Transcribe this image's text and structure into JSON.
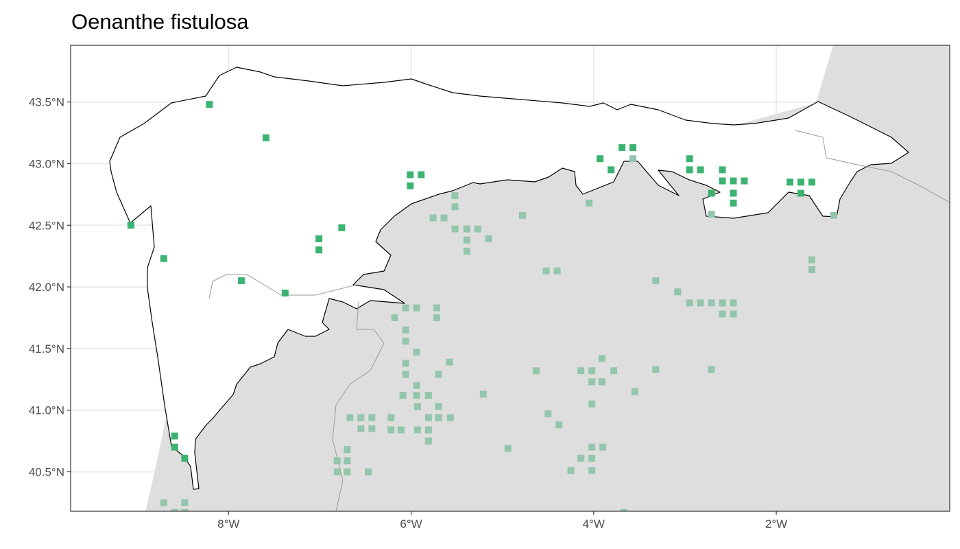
{
  "title": "Oenanthe fistulosa",
  "colors": {
    "present_in_region": "#3cb371",
    "present_outside_region": "#93c6aa",
    "other_land": "#dedede",
    "region_fill": "#ffffff",
    "grid": "#ebebeb"
  },
  "chart_data": {
    "type": "map-scatter",
    "title": "Oenanthe fistulosa",
    "xlim": [
      -9.73,
      -0.1
    ],
    "ylim": [
      40.18,
      43.96
    ],
    "grid": true,
    "x_ticks": [
      {
        "value": -8,
        "label": "8°W"
      },
      {
        "value": -6,
        "label": "6°W"
      },
      {
        "value": -4,
        "label": "4°W"
      },
      {
        "value": -2,
        "label": "2°W"
      }
    ],
    "y_ticks": [
      {
        "value": 43.5,
        "label": "43.5°N"
      },
      {
        "value": 43.0,
        "label": "43.0°N"
      },
      {
        "value": 42.5,
        "label": "42.5°N"
      },
      {
        "value": 42.0,
        "label": "42.0°N"
      },
      {
        "value": 41.5,
        "label": "41.5°N"
      },
      {
        "value": 41.0,
        "label": "41.0°N"
      },
      {
        "value": 40.5,
        "label": "40.5°N"
      }
    ],
    "series": [
      {
        "style": "in-region",
        "points": [
          [
            -8.21,
            43.48
          ],
          [
            -7.59,
            43.21
          ],
          [
            -9.07,
            42.5
          ],
          [
            -8.71,
            42.23
          ],
          [
            -7.01,
            42.39
          ],
          [
            -7.01,
            42.3
          ],
          [
            -6.76,
            42.48
          ],
          [
            -7.86,
            42.05
          ],
          [
            -7.38,
            41.95
          ],
          [
            -6.01,
            42.91
          ],
          [
            -5.89,
            42.91
          ],
          [
            -6.01,
            42.82
          ],
          [
            -3.93,
            43.04
          ],
          [
            -3.69,
            43.13
          ],
          [
            -3.57,
            43.13
          ],
          [
            -3.81,
            42.95
          ],
          [
            -2.95,
            43.04
          ],
          [
            -2.95,
            42.95
          ],
          [
            -2.83,
            42.95
          ],
          [
            -2.59,
            42.95
          ],
          [
            -2.71,
            42.76
          ],
          [
            -2.59,
            42.86
          ],
          [
            -2.47,
            42.86
          ],
          [
            -2.35,
            42.86
          ],
          [
            -2.47,
            42.76
          ],
          [
            -2.47,
            42.68
          ],
          [
            -1.85,
            42.85
          ],
          [
            -1.73,
            42.85
          ],
          [
            -1.61,
            42.85
          ],
          [
            -1.73,
            42.76
          ],
          [
            -8.59,
            40.79
          ],
          [
            -8.59,
            40.7
          ],
          [
            -8.48,
            40.61
          ]
        ]
      },
      {
        "style": "outside-region",
        "points": [
          [
            -3.57,
            43.04
          ],
          [
            -5.52,
            42.74
          ],
          [
            -5.52,
            42.65
          ],
          [
            -5.76,
            42.56
          ],
          [
            -5.64,
            42.56
          ],
          [
            -5.52,
            42.47
          ],
          [
            -5.39,
            42.47
          ],
          [
            -5.27,
            42.47
          ],
          [
            -5.39,
            42.38
          ],
          [
            -5.15,
            42.39
          ],
          [
            -5.39,
            42.29
          ],
          [
            -4.78,
            42.58
          ],
          [
            -4.05,
            42.68
          ],
          [
            -2.71,
            42.59
          ],
          [
            -1.37,
            42.58
          ],
          [
            -1.61,
            42.22
          ],
          [
            -1.61,
            42.14
          ],
          [
            -4.52,
            42.13
          ],
          [
            -4.4,
            42.13
          ],
          [
            -3.32,
            42.05
          ],
          [
            -3.08,
            41.96
          ],
          [
            -2.95,
            41.87
          ],
          [
            -2.83,
            41.87
          ],
          [
            -2.71,
            41.87
          ],
          [
            -2.59,
            41.87
          ],
          [
            -2.47,
            41.87
          ],
          [
            -2.59,
            41.78
          ],
          [
            -2.47,
            41.78
          ],
          [
            -6.06,
            41.83
          ],
          [
            -5.94,
            41.83
          ],
          [
            -5.72,
            41.83
          ],
          [
            -6.18,
            41.75
          ],
          [
            -5.72,
            41.75
          ],
          [
            -6.06,
            41.65
          ],
          [
            -6.06,
            41.56
          ],
          [
            -5.94,
            41.47
          ],
          [
            -6.06,
            41.38
          ],
          [
            -5.58,
            41.39
          ],
          [
            -5.7,
            41.29
          ],
          [
            -6.06,
            41.29
          ],
          [
            -5.94,
            41.2
          ],
          [
            -5.94,
            41.12
          ],
          [
            -5.81,
            41.12
          ],
          [
            -6.09,
            41.12
          ],
          [
            -5.93,
            41.03
          ],
          [
            -5.7,
            41.03
          ],
          [
            -5.81,
            40.94
          ],
          [
            -5.7,
            40.94
          ],
          [
            -5.57,
            40.94
          ],
          [
            -5.93,
            40.84
          ],
          [
            -5.81,
            40.84
          ],
          [
            -5.81,
            40.75
          ],
          [
            -6.67,
            40.94
          ],
          [
            -6.55,
            40.94
          ],
          [
            -6.43,
            40.94
          ],
          [
            -6.22,
            40.94
          ],
          [
            -6.55,
            40.85
          ],
          [
            -6.43,
            40.85
          ],
          [
            -6.22,
            40.84
          ],
          [
            -6.11,
            40.84
          ],
          [
            -6.81,
            40.59
          ],
          [
            -6.7,
            40.68
          ],
          [
            -6.81,
            40.5
          ],
          [
            -6.7,
            40.59
          ],
          [
            -6.7,
            40.5
          ],
          [
            -6.47,
            40.5
          ],
          [
            -5.21,
            41.13
          ],
          [
            -4.63,
            41.32
          ],
          [
            -4.14,
            41.32
          ],
          [
            -4.02,
            41.32
          ],
          [
            -3.78,
            41.32
          ],
          [
            -3.91,
            41.42
          ],
          [
            -4.02,
            41.23
          ],
          [
            -3.91,
            41.23
          ],
          [
            -3.55,
            41.15
          ],
          [
            -3.32,
            41.33
          ],
          [
            -2.71,
            41.33
          ],
          [
            -4.02,
            41.05
          ],
          [
            -4.5,
            40.97
          ],
          [
            -4.38,
            40.88
          ],
          [
            -4.02,
            40.7
          ],
          [
            -3.9,
            40.7
          ],
          [
            -4.14,
            40.61
          ],
          [
            -4.02,
            40.61
          ],
          [
            -4.25,
            40.51
          ],
          [
            -4.02,
            40.51
          ],
          [
            -4.94,
            40.69
          ],
          [
            -8.71,
            40.25
          ],
          [
            -8.48,
            40.25
          ],
          [
            -8.59,
            40.17
          ],
          [
            -8.48,
            40.17
          ],
          [
            -3.67,
            40.17
          ]
        ]
      }
    ]
  }
}
